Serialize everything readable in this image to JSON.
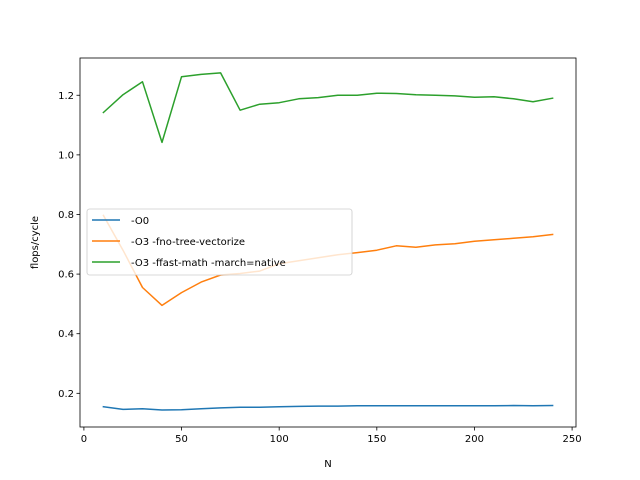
{
  "chart_data": {
    "type": "line",
    "xlabel": "N",
    "ylabel": "flops/cycle",
    "xlim": [
      -2,
      252
    ],
    "ylim": [
      0.087,
      1.325
    ],
    "xticks": [
      0,
      50,
      100,
      150,
      200,
      250
    ],
    "yticks": [
      0.2,
      0.4,
      0.6,
      0.8,
      1.0,
      1.2
    ],
    "xtick_labels": [
      "0",
      "50",
      "100",
      "150",
      "200",
      "250"
    ],
    "ytick_labels": [
      "0.2",
      "0.4",
      "0.6",
      "0.8",
      "1.0",
      "1.2"
    ],
    "grid": false,
    "legend_position": "center-left",
    "x": [
      10,
      20,
      30,
      40,
      50,
      60,
      70,
      80,
      90,
      100,
      110,
      120,
      130,
      140,
      150,
      160,
      170,
      180,
      190,
      200,
      210,
      220,
      230,
      240
    ],
    "series": [
      {
        "name": "-O0",
        "color": "#1f77b4",
        "values": [
          0.155,
          0.146,
          0.148,
          0.144,
          0.145,
          0.148,
          0.151,
          0.153,
          0.153,
          0.155,
          0.156,
          0.157,
          0.157,
          0.158,
          0.158,
          0.158,
          0.158,
          0.158,
          0.158,
          0.158,
          0.158,
          0.159,
          0.158,
          0.159
        ]
      },
      {
        "name": "-O3 -fno-tree-vectorize",
        "color": "#ff7f0e",
        "values": [
          0.797,
          0.68,
          0.555,
          0.495,
          0.538,
          0.573,
          0.597,
          0.602,
          0.61,
          0.635,
          0.645,
          0.655,
          0.665,
          0.672,
          0.68,
          0.695,
          0.69,
          0.698,
          0.702,
          0.71,
          0.715,
          0.72,
          0.725,
          0.733
        ]
      },
      {
        "name": "-O3 -ffast-math -march=native",
        "color": "#2ca02c",
        "values": [
          1.142,
          1.202,
          1.245,
          1.042,
          1.262,
          1.27,
          1.275,
          1.15,
          1.17,
          1.175,
          1.188,
          1.192,
          1.2,
          1.2,
          1.207,
          1.206,
          1.202,
          1.2,
          1.198,
          1.193,
          1.195,
          1.188,
          1.178,
          1.19
        ]
      }
    ]
  }
}
